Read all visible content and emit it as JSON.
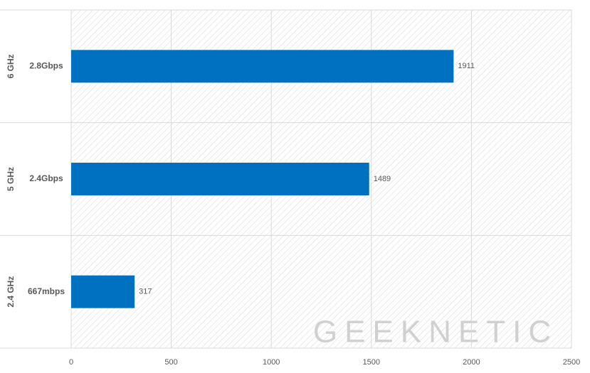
{
  "chart_data": {
    "type": "bar",
    "orientation": "horizontal",
    "groups": [
      "6 GHz",
      "5 GHz",
      "2.4 GHz"
    ],
    "categories": [
      "2.8Gbps",
      "2.4Gbps",
      "667mbps"
    ],
    "values": [
      1911,
      1489,
      317
    ],
    "color": "#0070c0",
    "xlim": [
      0,
      2500
    ],
    "xticks": [
      0,
      500,
      1000,
      1500,
      2000,
      2500
    ],
    "grid": true,
    "watermark": "GEEKNETIC"
  }
}
